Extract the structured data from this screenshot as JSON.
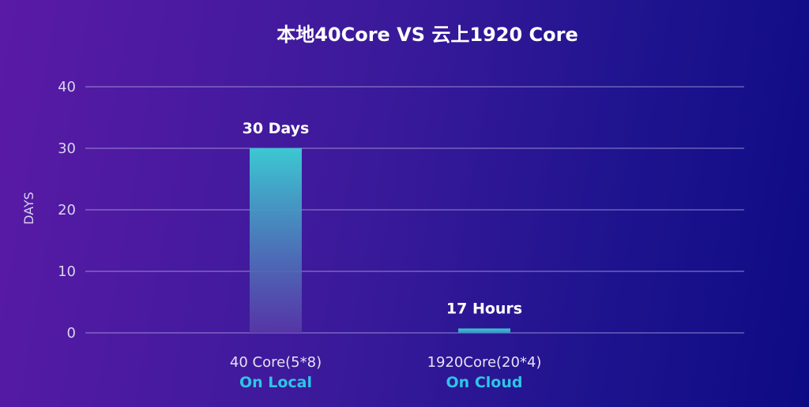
{
  "chart_data": {
    "type": "bar",
    "title": "本地40Core VS 云上1920 Core",
    "ylabel": "DAYS",
    "xlabel": "",
    "ylim": [
      0,
      40
    ],
    "yticks": [
      0,
      10,
      20,
      30,
      40
    ],
    "grid": true,
    "categories": [
      "40 Core(5*8)",
      "1920Core(20*4)"
    ],
    "category_sublabels": [
      "On Local",
      "On Cloud"
    ],
    "values": [
      30,
      0.71
    ],
    "data_labels": [
      "30 Days",
      "17 Hours"
    ],
    "colors": {
      "bar_top": "#3cc8d2",
      "bar_bottom": "#5a3aa8",
      "sublabel": "#2ec6e4",
      "grid": "#b7b0e6"
    }
  }
}
